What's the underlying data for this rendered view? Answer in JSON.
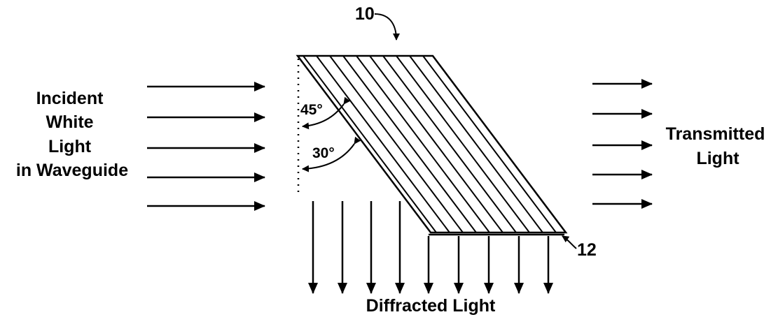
{
  "labels": {
    "ref_top": "10",
    "ref_bottom": "12",
    "incident": [
      "Incident",
      "White",
      "Light",
      "in Waveguide"
    ],
    "angle_a": "45°",
    "angle_b": "30°",
    "transmitted": [
      "Transmitted",
      "Light"
    ],
    "diffracted": "Diffracted Light"
  },
  "colors": {
    "line": "#000000",
    "background": "#ffffff"
  }
}
